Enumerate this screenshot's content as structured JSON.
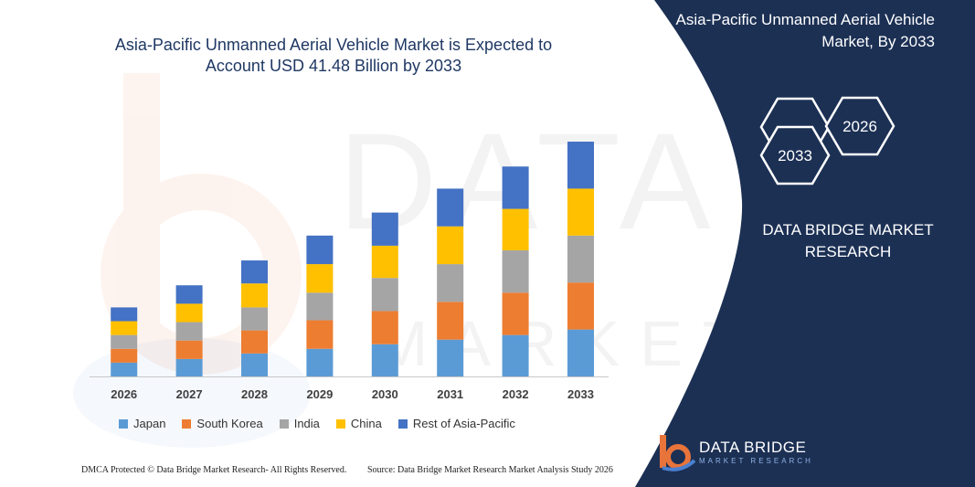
{
  "chart_data": {
    "type": "bar",
    "stacked": true,
    "title": "Asia-Pacific Unmanned Aerial Vehicle Market is Expected to Account USD 41.48 Billion by 2033",
    "xlabel": "",
    "ylabel": "",
    "categories": [
      "2026",
      "2027",
      "2028",
      "2029",
      "2030",
      "2031",
      "2032",
      "2033"
    ],
    "series": [
      {
        "name": "Japan",
        "color": "#5b9bd5",
        "values": [
          15,
          19,
          25,
          30,
          35,
          40,
          45,
          51
        ]
      },
      {
        "name": "South Korea",
        "color": "#ed7d31",
        "values": [
          15,
          20,
          25,
          31,
          36,
          41,
          46,
          51
        ]
      },
      {
        "name": "India",
        "color": "#a5a5a5",
        "values": [
          15,
          20,
          25,
          30,
          36,
          41,
          46,
          51
        ]
      },
      {
        "name": "China",
        "color": "#ffc000",
        "values": [
          15,
          20,
          26,
          31,
          35,
          41,
          45,
          51
        ]
      },
      {
        "name": "Rest of Asia-Pacific",
        "color": "#4472c4",
        "values": [
          15,
          20,
          25,
          31,
          36,
          41,
          46,
          51
        ]
      }
    ],
    "ylim": [
      0,
      260
    ],
    "grid": false,
    "legend_position": "bottom"
  },
  "panel": {
    "title": "Asia-Pacific Unmanned Aerial Vehicle Market, By 2033",
    "hex_years": [
      "2026",
      "2033"
    ],
    "company": "DATA BRIDGE MARKET RESEARCH",
    "background": "#1c3054"
  },
  "footer": {
    "left": "DMCA Protected © Data Bridge Market Research- All Rights Reserved.",
    "right": "Source: Data Bridge Market Research Market Analysis Study 2026"
  },
  "logo": {
    "name": "DATA BRIDGE",
    "tagline": "MARKET RESEARCH"
  }
}
